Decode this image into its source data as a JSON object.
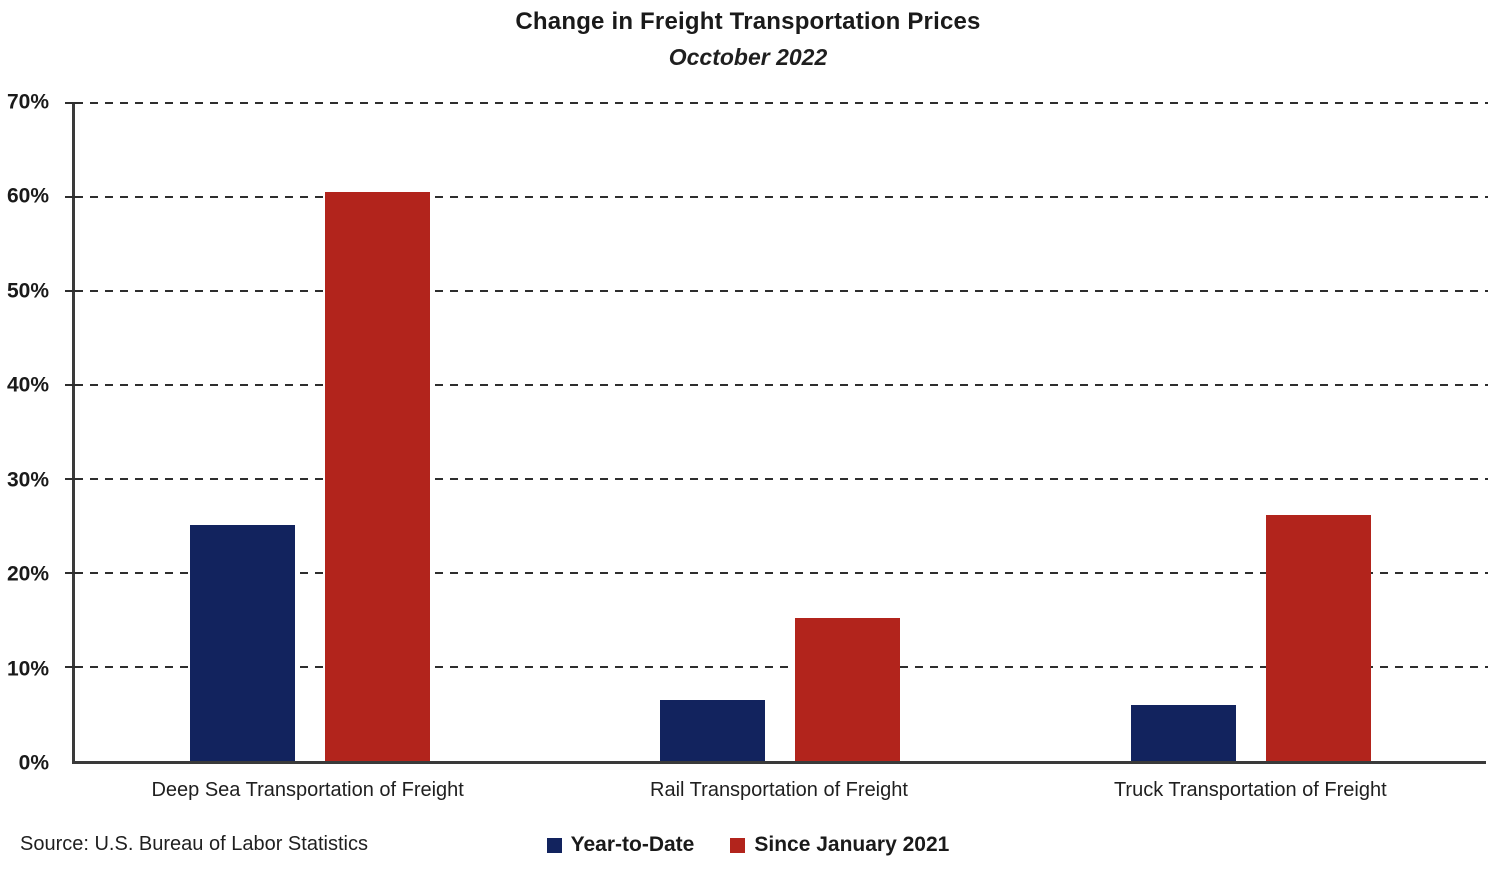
{
  "chart_data": {
    "type": "bar",
    "title": "Change in Freight Transportation Prices",
    "subtitle": "Occtober 2022",
    "source": "Source: U.S. Bureau of Labor Statistics",
    "categories": [
      "Deep Sea Transportation of Freight",
      "Rail Transportation of Freight",
      "Truck Transportation of Freight"
    ],
    "series": [
      {
        "name": "Year-to-Date",
        "color": "#12235e",
        "values": [
          25.1,
          6.5,
          6.0
        ]
      },
      {
        "name": "Since January 2021",
        "color": "#b2241c",
        "values": [
          60.5,
          15.2,
          26.2
        ]
      }
    ],
    "xlabel": "",
    "ylabel": "",
    "ylim": [
      0,
      70
    ],
    "ytick_step": 10,
    "ytick_suffix": "%",
    "grid": "horizontal-dashed",
    "legend_position": "bottom-center"
  },
  "colors": {
    "year_to_date": "#12235e",
    "since_january_2021": "#b2241c",
    "axis": "#3a3a3a",
    "gridline": "#2e2e2e",
    "text": "#1f1f1f"
  }
}
